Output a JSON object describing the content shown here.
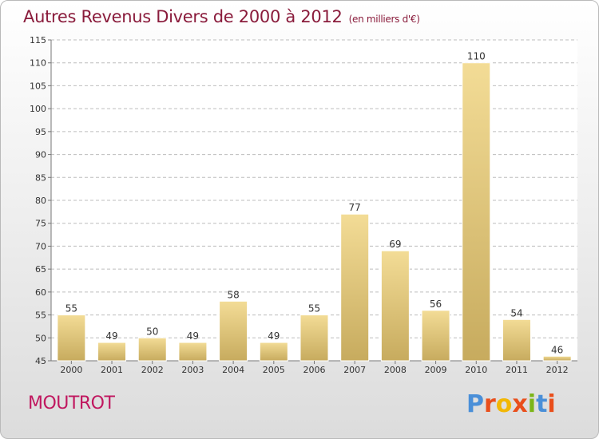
{
  "header": {
    "title": "Autres Revenus Divers de 2000 à 2012",
    "subtitle": "(en milliers d'€)"
  },
  "footer": {
    "commune": "MOUTROT",
    "logo_text": "Proxiti"
  },
  "colors": {
    "title": "#8a1c3c",
    "commune": "#c0175f",
    "bar_light": "#f3dc96",
    "bar_dark": "#c7ab5e",
    "grid": "#bdbdbd",
    "logo": [
      "#4a8fd8",
      "#e94e1b",
      "#f2b705",
      "#e94e1b",
      "#7cb518",
      "#4a8fd8",
      "#e94e1b"
    ]
  },
  "chart_data": {
    "type": "bar",
    "categories": [
      "2000",
      "2001",
      "2002",
      "2003",
      "2004",
      "2005",
      "2006",
      "2007",
      "2008",
      "2009",
      "2010",
      "2011",
      "2012"
    ],
    "values": [
      55,
      49,
      50,
      49,
      58,
      49,
      55,
      77,
      69,
      56,
      110,
      54,
      46
    ],
    "ylim": [
      45,
      115
    ],
    "yticks": [
      45,
      50,
      55,
      60,
      65,
      70,
      75,
      80,
      85,
      90,
      95,
      100,
      105,
      110,
      115
    ],
    "grid": true,
    "xlabel": "",
    "ylabel": ""
  }
}
